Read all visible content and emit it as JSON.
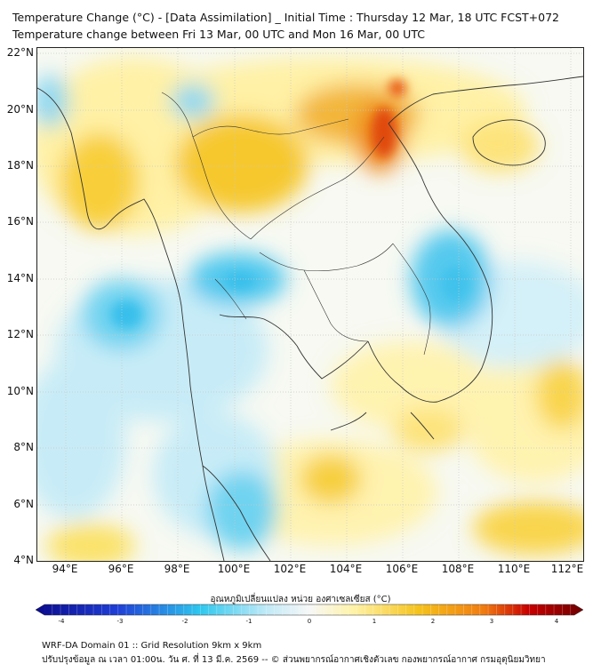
{
  "title_line1": "Temperature Change (°C) - [Data Assimilation] _ Initial Time : Thursday 12 Mar, 18 UTC FCST+072",
  "title_line2": "Temperature change between Fri 13 Mar, 00 UTC and Mon 16 Mar, 00 UTC",
  "lat_labels": [
    "22°N",
    "20°N",
    "18°N",
    "16°N",
    "14°N",
    "12°N",
    "10°N",
    "8°N",
    "6°N",
    "4°N"
  ],
  "lon_labels": [
    "94°E",
    "96°E",
    "98°E",
    "100°E",
    "102°E",
    "104°E",
    "106°E",
    "108°E",
    "110°E",
    "112°E"
  ],
  "colorbar": {
    "title": "อุณหภูมิเปลี่ยนแปลง หน่วย องศาเซลเซียส (°C)",
    "min": -4,
    "max": 4,
    "ticks": [
      "-4",
      "-3",
      "-2",
      "-1",
      "0",
      "1",
      "2",
      "3",
      "4"
    ],
    "colors": {
      "cold_extreme": "#0a0a8c",
      "cold": "#1f6fe6",
      "cool": "#2ec7ee",
      "cool_light": "#bfe9f7",
      "neutral": "#f7f7f7",
      "warm_light": "#fff3a8",
      "warm": "#f5c21b",
      "hot": "#f07a10",
      "hot_extreme": "#c80000",
      "dark_red": "#6e0000"
    }
  },
  "footer_line1": "WRF-DA Domain 01 :: Grid Resolution 9km x 9km",
  "footer_line2": "ปรับปรุงข้อมูล ณ เวลา 01:00น. วัน ศ. ที่ 13 มี.ค. 2569 -- © ส่วนพยากรณ์อากาศเชิงตัวเลข กองพยากรณ์อากาศ กรมอุตุนิยมวิทยา"
}
